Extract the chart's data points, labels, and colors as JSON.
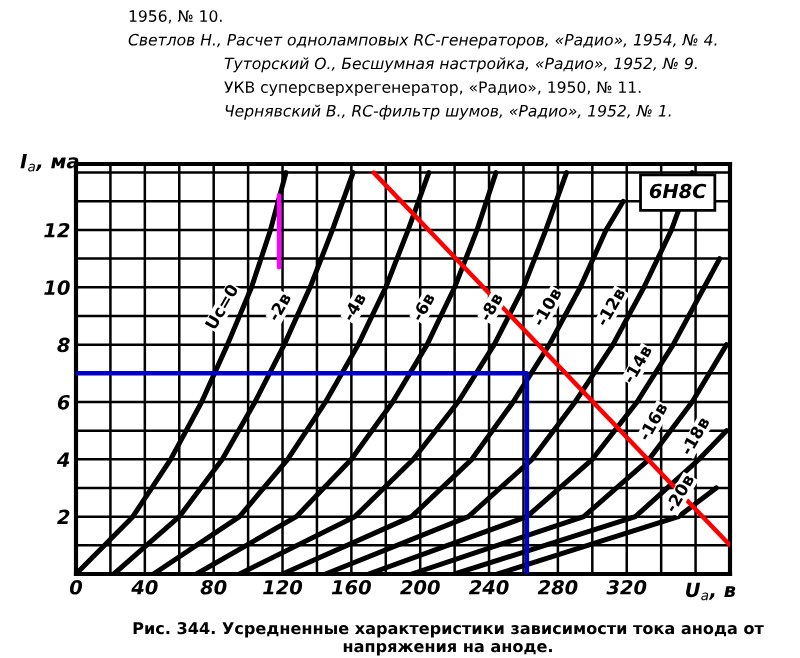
{
  "chart_data": {
    "type": "line",
    "xlabel": "U$_{а}$, в",
    "ylabel": "I$_{а}$, ма",
    "annotations": [
      "1956, № 10.",
      "Светлов Н., Расчет одноламповых RC-генераторов, «Радио», 1954, № 4.",
      "Туторский О., Бесшумная настройка, «Радио», 1952, № 9.",
      "УКВ суперсверхрегенератор, «Радио», 1950, № 11.",
      "Чернявский В., RC-фильтр шумов, «Радио», 1952, № 1.",
      "6Н8С",
      "Рис. 344. Усредненные характеристики зависимости тока анода от напряжения на аноде."
    ],
    "xlim": [
      0,
      380
    ],
    "ylim": [
      0,
      14.3
    ],
    "xticks": [
      0,
      {
        "value": 20,
        "label": null
      },
      40,
      {
        "value": 60,
        "label": null
      },
      80,
      {
        "value": 100,
        "label": null
      },
      120,
      {
        "value": 140,
        "label": null
      },
      160,
      {
        "value": 180,
        "label": null
      },
      200,
      {
        "value": 220,
        "label": null
      },
      240,
      {
        "value": 260,
        "label": null
      },
      280,
      {
        "value": 300,
        "label": null
      },
      320,
      {
        "value": 340,
        "label": null
      },
      {
        "value": 360,
        "label": null
      }
    ],
    "yticks": [
      {
        "value": 0,
        "label": null
      },
      {
        "value": 1,
        "label": null
      },
      2,
      {
        "value": 3,
        "label": null
      },
      4,
      {
        "value": 5,
        "label": null
      },
      6,
      {
        "value": 7,
        "label": null
      },
      8,
      {
        "value": 9,
        "label": null
      },
      10,
      {
        "value": 11,
        "label": null
      },
      12,
      {
        "value": 13,
        "label": null
      },
      {
        "value": 14,
        "label": null
      }
    ],
    "grid": true,
    "marker": "none",
    "line_style": "solid",
    "series": [
      {
        "name": "Uс=0",
        "color": "#000000",
        "x": [
          0,
          33,
          55,
          73,
          88,
          102,
          113,
          122
        ],
        "values": [
          0,
          2,
          4,
          6,
          8,
          10,
          12,
          14
        ]
      },
      {
        "name": "-2в",
        "color": "#000000",
        "x": [
          22,
          60,
          85,
          104,
          121,
          136,
          149,
          161
        ],
        "values": [
          0,
          2,
          4,
          6,
          8,
          10,
          12,
          14
        ]
      },
      {
        "name": "-4в",
        "color": "#000000",
        "x": [
          45,
          95,
          123,
          145,
          164,
          180,
          193,
          205
        ],
        "values": [
          0,
          2,
          4,
          6,
          8,
          10,
          12,
          14
        ]
      },
      {
        "name": "-6в",
        "color": "#000000",
        "x": [
          70,
          128,
          160,
          184,
          204,
          220,
          233,
          244
        ],
        "values": [
          0,
          2,
          4,
          6,
          8,
          10,
          12,
          14
        ]
      },
      {
        "name": "-8в",
        "color": "#000000",
        "x": [
          95,
          162,
          196,
          222,
          243,
          260,
          273,
          285
        ],
        "values": [
          0,
          2,
          4,
          6,
          8,
          10,
          12,
          14
        ]
      },
      {
        "name": "-10в",
        "color": "#000000",
        "x": [
          120,
          195,
          230,
          254,
          275,
          293,
          308,
          318
        ],
        "values": [
          0,
          2,
          4,
          6,
          8,
          10,
          12,
          13
        ]
      },
      {
        "name": "-12в",
        "color": "#000000",
        "x": [
          145,
          228,
          265,
          290,
          312,
          330,
          346,
          358
        ],
        "values": [
          0,
          2,
          4,
          6,
          8,
          10,
          12,
          14
        ]
      },
      {
        "name": "-14в",
        "color": "#000000",
        "x": [
          170,
          262,
          300,
          326,
          347,
          365,
          374
        ],
        "values": [
          0,
          2,
          4,
          6,
          8,
          10,
          11
        ]
      },
      {
        "name": "-16в",
        "color": "#000000",
        "x": [
          195,
          295,
          333,
          358,
          378
        ],
        "values": [
          0,
          2,
          4,
          6,
          8
        ]
      },
      {
        "name": "-18в",
        "color": "#000000",
        "x": [
          220,
          325,
          362,
          378
        ],
        "values": [
          0,
          2,
          4,
          5
        ]
      },
      {
        "name": "-20в",
        "color": "#000000",
        "x": [
          245,
          350,
          372
        ],
        "values": [
          0,
          2,
          3
        ]
      },
      {
        "color": "#ff0000",
        "x": [
          173,
          380
        ],
        "values": [
          14,
          1.0
        ]
      },
      {
        "color": "#0000cc",
        "x": [
          0,
          262,
          262
        ],
        "values": [
          7,
          7,
          0
        ]
      },
      {
        "color": "#ff00ff",
        "x": [
          118,
          118
        ],
        "values": [
          10.7,
          13.2
        ]
      }
    ]
  }
}
